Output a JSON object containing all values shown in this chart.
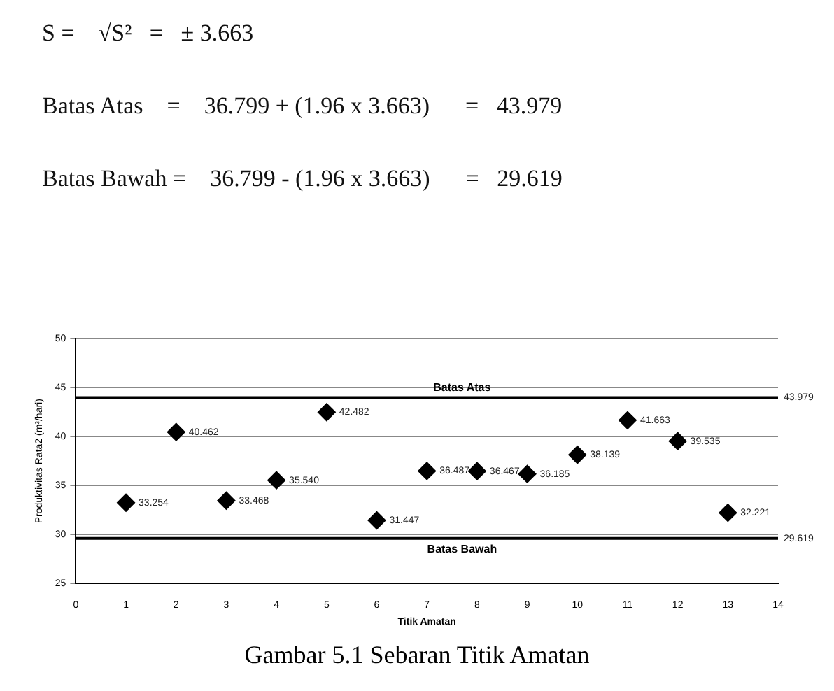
{
  "chart_data": {
    "type": "scatter",
    "title": "Gambar 5.1 Sebaran Titik Amatan",
    "xlabel": "Titik Amatan",
    "ylabel": "Produktivitas Rata2 (m³/hari)",
    "x": [
      1,
      2,
      3,
      4,
      5,
      6,
      7,
      8,
      9,
      10,
      11,
      12,
      13
    ],
    "values": [
      33.254,
      40.462,
      33.468,
      35.54,
      42.482,
      31.447,
      36.487,
      36.467,
      36.185,
      38.139,
      41.663,
      39.535,
      32.221
    ],
    "value_labels": [
      "33.254",
      "40.462",
      "33.468",
      "35.540",
      "42.482",
      "31.447",
      "36.487",
      "36.467",
      "36.185",
      "38.139",
      "41.663",
      "39.535",
      "32.221"
    ],
    "color": "#000000",
    "marker": "diamond",
    "xlim": [
      0,
      14
    ],
    "xticks": [
      0,
      1,
      2,
      3,
      4,
      5,
      6,
      7,
      8,
      9,
      10,
      11,
      12,
      13,
      14
    ],
    "ylim": [
      25,
      50
    ],
    "yticks": [
      25,
      30,
      35,
      40,
      45,
      50
    ],
    "grid": "y",
    "ref_lines": [
      {
        "axis": "y",
        "value": 43.979,
        "label": "Batas Atas",
        "color": "#000000"
      },
      {
        "axis": "y",
        "value": 29.619,
        "label": "Batas Bawah",
        "color": "#000000"
      }
    ],
    "annotations": [
      "S =    √S²   =   ± 3.663",
      "Batas Atas    =    36.799 + (1.96 x 3.663)      =   43.979",
      "Batas Bawah =    36.799 - (1.96 x 3.663)      =   29.619",
      {
        "text": "43.979",
        "x": 14,
        "y": 43.979
      },
      {
        "text": "29.619",
        "x": 14,
        "y": 29.619
      }
    ]
  }
}
